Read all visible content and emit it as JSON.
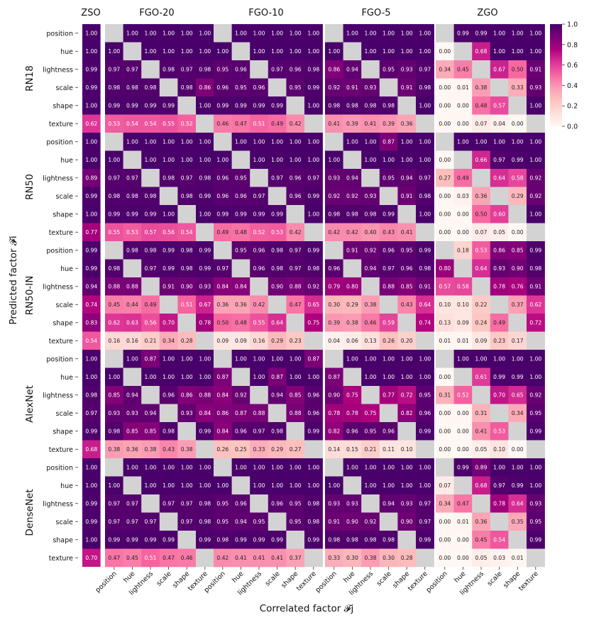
{
  "chart_data": {
    "type": "heatmap",
    "title": "",
    "xlabel": "Correlated factor 𝓕j",
    "ylabel": "Predicted factor 𝓕i",
    "factors": [
      "position",
      "hue",
      "lightness",
      "scale",
      "shape",
      "texture"
    ],
    "conditions": [
      "ZSO",
      "FGO-20",
      "FGO-10",
      "FGO-5",
      "ZGO"
    ],
    "models": [
      "RN18",
      "RN50",
      "RN50-IN",
      "AlexNet",
      "DenseNet"
    ],
    "colorbar": {
      "min": 0.0,
      "max": 1.0,
      "ticks": [
        "0.0",
        "0.2",
        "0.4",
        "0.6",
        "0.8",
        "1.0"
      ]
    },
    "diagonal_color": "#d3d3d3",
    "colormap": [
      "#fff7f3",
      "#fde0dd",
      "#fcc5c0",
      "#fa9fb5",
      "#f768a1",
      "#dd3497",
      "#ae017e",
      "#7a0177",
      "#49006a"
    ],
    "zso": {
      "RN18": [
        "1.00",
        "1.00",
        "0.99",
        "0.99",
        "1.00",
        "0.62"
      ],
      "RN50": [
        "1.00",
        "1.00",
        "0.89",
        "0.99",
        "1.00",
        "0.77"
      ],
      "RN50-IN": [
        "0.99",
        "0.99",
        "0.94",
        "0.74",
        "0.83",
        "0.54"
      ],
      "AlexNet": [
        "1.00",
        "1.00",
        "0.98",
        "0.97",
        "0.99",
        "0.68"
      ],
      "DenseNet": [
        "1.00",
        "1.00",
        "0.99",
        "0.99",
        "1.00",
        "0.70"
      ]
    },
    "matrices": {
      "RN18": {
        "FGO-20": [
          [
            null,
            "1.00",
            "1.00",
            "1.00",
            "1.00",
            "1.00"
          ],
          [
            "1.00",
            null,
            "1.00",
            "1.00",
            "1.00",
            "1.00"
          ],
          [
            "0.97",
            "0.97",
            null,
            "0.98",
            "0.97",
            "0.98"
          ],
          [
            "0.98",
            "0.98",
            "0.98",
            null,
            "0.98",
            "0.86"
          ],
          [
            "0.99",
            "0.99",
            "0.99",
            "0.99",
            null,
            "1.00"
          ],
          [
            "0.53",
            "0.54",
            "0.54",
            "0.55",
            "0.52",
            null
          ]
        ],
        "FGO-10": [
          [
            null,
            "1.00",
            "1.00",
            "1.00",
            "1.00",
            "1.00"
          ],
          [
            "1.00",
            null,
            "1.00",
            "1.00",
            "1.00",
            "1.00"
          ],
          [
            "0.95",
            "0.96",
            null,
            "0.97",
            "0.96",
            "0.98"
          ],
          [
            "0.96",
            "0.95",
            "0.96",
            null,
            "0.95",
            "0.99"
          ],
          [
            "0.99",
            "0.99",
            "0.99",
            "0.99",
            null,
            "1.00"
          ],
          [
            "0.46",
            "0.47",
            "0.51",
            "0.49",
            "0.42",
            null
          ]
        ],
        "FGO-5": [
          [
            null,
            "1.00",
            "1.00",
            "1.00",
            "1.00",
            "1.00"
          ],
          [
            "1.00",
            null,
            "1.00",
            "1.00",
            "1.00",
            "1.00"
          ],
          [
            "0.86",
            "0.94",
            null,
            "0.95",
            "0.93",
            "0.97"
          ],
          [
            "0.92",
            "0.91",
            "0.93",
            null,
            "0.91",
            "0.98"
          ],
          [
            "0.98",
            "0.98",
            "0.98",
            "0.98",
            null,
            "1.00"
          ],
          [
            "0.41",
            "0.39",
            "0.41",
            "0.39",
            "0.36",
            null
          ]
        ],
        "ZGO": [
          [
            null,
            "0.99",
            "0.99",
            "1.00",
            "1.00",
            "1.00"
          ],
          [
            "0.00",
            null,
            "0.68",
            "1.00",
            "1.00",
            "1.00"
          ],
          [
            "0.34",
            "0.45",
            null,
            "0.67",
            "0.50",
            "0.91"
          ],
          [
            "0.00",
            "0.01",
            "0.38",
            null,
            "0.33",
            "0.93"
          ],
          [
            "0.00",
            "0.00",
            "0.48",
            "0.57",
            null,
            "1.00"
          ],
          [
            "0.00",
            "0.00",
            "0.07",
            "0.04",
            "0.00",
            null
          ]
        ]
      },
      "RN50": {
        "FGO-20": [
          [
            null,
            "1.00",
            "1.00",
            "1.00",
            "1.00",
            "1.00"
          ],
          [
            "1.00",
            null,
            "1.00",
            "1.00",
            "1.00",
            "1.00"
          ],
          [
            "0.97",
            "0.97",
            null,
            "0.98",
            "0.97",
            "0.98"
          ],
          [
            "0.98",
            "0.98",
            "0.98",
            null,
            "0.98",
            "0.99"
          ],
          [
            "0.99",
            "0.99",
            "0.99",
            "1.00",
            null,
            "1.00"
          ],
          [
            "0.55",
            "0.53",
            "0.57",
            "0.56",
            "0.54",
            null
          ]
        ],
        "FGO-10": [
          [
            null,
            "1.00",
            "1.00",
            "1.00",
            "1.00",
            "1.00"
          ],
          [
            "1.00",
            null,
            "1.00",
            "1.00",
            "1.00",
            "1.00"
          ],
          [
            "0.96",
            "0.95",
            null,
            "0.97",
            "0.96",
            "0.97"
          ],
          [
            "0.96",
            "0.96",
            "0.97",
            null,
            "0.96",
            "0.99"
          ],
          [
            "0.99",
            "0.99",
            "0.99",
            "0.99",
            null,
            "1.00"
          ],
          [
            "0.49",
            "0.48",
            "0.52",
            "0.53",
            "0.42",
            null
          ]
        ],
        "FGO-5": [
          [
            null,
            "1.00",
            "1.00",
            "0.87",
            "1.00",
            "1.00"
          ],
          [
            "1.00",
            null,
            "1.00",
            "1.00",
            "1.00",
            "1.00"
          ],
          [
            "0.93",
            "0.94",
            null,
            "0.95",
            "0.94",
            "0.97"
          ],
          [
            "0.92",
            "0.92",
            "0.93",
            null,
            "0.91",
            "0.98"
          ],
          [
            "0.98",
            "0.98",
            "0.98",
            "0.99",
            null,
            "1.00"
          ],
          [
            "0.42",
            "0.42",
            "0.40",
            "0.43",
            "0.41",
            null
          ]
        ],
        "ZGO": [
          [
            null,
            "1.00",
            "1.00",
            "1.00",
            "1.00",
            "1.00"
          ],
          [
            "0.00",
            null,
            "0.66",
            "0.97",
            "0.99",
            "1.00"
          ],
          [
            "0.27",
            "0.49",
            null,
            "0.64",
            "0.58",
            "0.92"
          ],
          [
            "0.00",
            "0.03",
            "0.36",
            null,
            "0.29",
            "0.92"
          ],
          [
            "0.00",
            "0.00",
            "0.50",
            "0.60",
            null,
            "1.00"
          ],
          [
            "0.00",
            "0.00",
            "0.07",
            "0.05",
            "0.00",
            null
          ]
        ]
      },
      "RN50-IN": {
        "FGO-20": [
          [
            null,
            "0.98",
            "0.98",
            "0.99",
            "0.98",
            "0.99"
          ],
          [
            "0.98",
            null,
            "0.97",
            "0.99",
            "0.98",
            "0.99"
          ],
          [
            "0.88",
            "0.88",
            null,
            "0.91",
            "0.90",
            "0.93"
          ],
          [
            "0.45",
            "0.44",
            "0.49",
            null,
            "0.51",
            "0.67"
          ],
          [
            "0.62",
            "0.63",
            "0.56",
            "0.70",
            null,
            "0.78"
          ],
          [
            "0.16",
            "0.16",
            "0.21",
            "0.34",
            "0.28",
            null
          ]
        ],
        "FGO-10": [
          [
            null,
            "0.95",
            "0.96",
            "0.98",
            "0.97",
            "0.99"
          ],
          [
            "0.97",
            null,
            "0.96",
            "0.98",
            "0.97",
            "0.98"
          ],
          [
            "0.84",
            "0.84",
            null,
            "0.90",
            "0.88",
            "0.92"
          ],
          [
            "0.36",
            "0.36",
            "0.42",
            null,
            "0.47",
            "0.65"
          ],
          [
            "0.50",
            "0.48",
            "0.55",
            "0.64",
            null,
            "0.75"
          ],
          [
            "0.09",
            "0.09",
            "0.16",
            "0.29",
            "0.23",
            null
          ]
        ],
        "FGO-5": [
          [
            null,
            "0.91",
            "0.92",
            "0.96",
            "0.95",
            "0.99"
          ],
          [
            "0.96",
            null,
            "0.94",
            "0.97",
            "0.96",
            "0.98"
          ],
          [
            "0.79",
            "0.80",
            null,
            "0.88",
            "0.85",
            "0.91"
          ],
          [
            "0.30",
            "0.29",
            "0.38",
            null,
            "0.43",
            "0.64"
          ],
          [
            "0.39",
            "0.38",
            "0.46",
            "0.59",
            null,
            "0.74"
          ],
          [
            "0.04",
            "0.06",
            "0.13",
            "0.26",
            "0.20",
            null
          ]
        ],
        "ZGO": [
          [
            null,
            "0.18",
            "0.53",
            "0.86",
            "0.85",
            "0.99"
          ],
          [
            "0.80",
            null,
            "0.64",
            "0.93",
            "0.90",
            "0.98"
          ],
          [
            "0.57",
            "0.58",
            null,
            "0.78",
            "0.76",
            "0.91"
          ],
          [
            "0.10",
            "0.10",
            "0.22",
            null,
            "0.37",
            "0.62"
          ],
          [
            "0.13",
            "0.09",
            "0.24",
            "0.49",
            null,
            "0.72"
          ],
          [
            "0.01",
            "0.01",
            "0.09",
            "0.23",
            "0.17",
            null
          ]
        ]
      },
      "AlexNet": {
        "FGO-20": [
          [
            null,
            "1.00",
            "0.87",
            "1.00",
            "1.00",
            "1.00"
          ],
          [
            "1.00",
            null,
            "1.00",
            "1.00",
            "1.00",
            "1.00"
          ],
          [
            "0.85",
            "0.94",
            null,
            "0.96",
            "0.86",
            "0.88"
          ],
          [
            "0.93",
            "0.93",
            "0.94",
            null,
            "0.93",
            "0.84"
          ],
          [
            "0.98",
            "0.85",
            "0.85",
            "0.98",
            null,
            "0.99"
          ],
          [
            "0.38",
            "0.36",
            "0.38",
            "0.43",
            "0.38",
            null
          ]
        ],
        "FGO-10": [
          [
            null,
            "1.00",
            "1.00",
            "1.00",
            "1.00",
            "0.87"
          ],
          [
            "0.87",
            null,
            "1.00",
            "0.87",
            "1.00",
            "1.00"
          ],
          [
            "0.84",
            "0.92",
            null,
            "0.94",
            "0.85",
            "0.96"
          ],
          [
            "0.86",
            "0.87",
            "0.88",
            null,
            "0.88",
            "0.96"
          ],
          [
            "0.84",
            "0.96",
            "0.97",
            "0.98",
            null,
            "0.99"
          ],
          [
            "0.26",
            "0.25",
            "0.33",
            "0.29",
            "0.27",
            null
          ]
        ],
        "FGO-5": [
          [
            null,
            "1.00",
            "1.00",
            "1.00",
            "1.00",
            "1.00"
          ],
          [
            "0.87",
            null,
            "1.00",
            "1.00",
            "1.00",
            "1.00"
          ],
          [
            "0.90",
            "0.75",
            null,
            "0.77",
            "0.72",
            "0.95"
          ],
          [
            "0.78",
            "0.78",
            "0.75",
            null,
            "0.82",
            "0.96"
          ],
          [
            "0.82",
            "0.96",
            "0.95",
            "0.96",
            null,
            "0.99"
          ],
          [
            "0.14",
            "0.15",
            "0.21",
            "0.11",
            "0.10",
            null
          ]
        ],
        "ZGO": [
          [
            null,
            "1.00",
            "1.00",
            "1.00",
            "1.00",
            "1.00"
          ],
          [
            "0.00",
            null,
            "0.61",
            "0.99",
            "0.99",
            "1.00"
          ],
          [
            "0.31",
            "0.52",
            null,
            "0.70",
            "0.65",
            "0.92"
          ],
          [
            "0.00",
            "0.00",
            "0.31",
            null,
            "0.34",
            "0.95"
          ],
          [
            "0.00",
            "0.00",
            "0.41",
            "0.53",
            null,
            "0.99"
          ],
          [
            "0.00",
            "0.00",
            "0.05",
            "0.10",
            "0.00",
            null
          ]
        ]
      },
      "DenseNet": {
        "FGO-20": [
          [
            null,
            "1.00",
            "1.00",
            "1.00",
            "1.00",
            "1.00"
          ],
          [
            "1.00",
            null,
            "1.00",
            "1.00",
            "1.00",
            "1.00"
          ],
          [
            "0.97",
            "0.97",
            null,
            "0.97",
            "0.97",
            "0.98"
          ],
          [
            "0.97",
            "0.97",
            "0.97",
            null,
            "0.97",
            "0.98"
          ],
          [
            "0.99",
            "0.99",
            "0.99",
            "0.99",
            null,
            "0.99"
          ],
          [
            "0.47",
            "0.45",
            "0.51",
            "0.47",
            "0.46",
            null
          ]
        ],
        "FGO-10": [
          [
            null,
            "1.00",
            "1.00",
            "1.00",
            "1.00",
            "1.00"
          ],
          [
            "1.00",
            null,
            "1.00",
            "1.00",
            "1.00",
            "1.00"
          ],
          [
            "0.95",
            "0.96",
            null,
            "0.96",
            "0.95",
            "0.98"
          ],
          [
            "0.95",
            "0.94",
            "0.95",
            null,
            "0.95",
            "0.98"
          ],
          [
            "0.98",
            "0.99",
            "0.99",
            "0.99",
            null,
            "0.99"
          ],
          [
            "0.42",
            "0.41",
            "0.41",
            "0.41",
            "0.37",
            null
          ]
        ],
        "FGO-5": [
          [
            null,
            "1.00",
            "1.00",
            "1.00",
            "1.00",
            "1.00"
          ],
          [
            "1.00",
            null,
            "1.00",
            "1.00",
            "1.00",
            "1.00"
          ],
          [
            "0.93",
            "0.93",
            null,
            "0.94",
            "0.93",
            "0.97"
          ],
          [
            "0.91",
            "0.90",
            "0.92",
            null,
            "0.90",
            "0.97"
          ],
          [
            "0.98",
            "0.98",
            "0.98",
            "0.98",
            null,
            "0.99"
          ],
          [
            "0.33",
            "0.30",
            "0.38",
            "0.30",
            "0.28",
            null
          ]
        ],
        "ZGO": [
          [
            null,
            "0.99",
            "0.89",
            "1.00",
            "1.00",
            "1.00"
          ],
          [
            "0.07",
            null,
            "0.68",
            "0.97",
            "0.99",
            "1.00"
          ],
          [
            "0.34",
            "0.47",
            null,
            "0.78",
            "0.64",
            "0.93"
          ],
          [
            "0.00",
            "0.01",
            "0.36",
            null,
            "0.35",
            "0.95"
          ],
          [
            "0.00",
            "0.00",
            "0.45",
            "0.54",
            null,
            "0.99"
          ],
          [
            "0.00",
            "0.00",
            "0.05",
            "0.03",
            "0.01",
            null
          ]
        ]
      }
    }
  }
}
